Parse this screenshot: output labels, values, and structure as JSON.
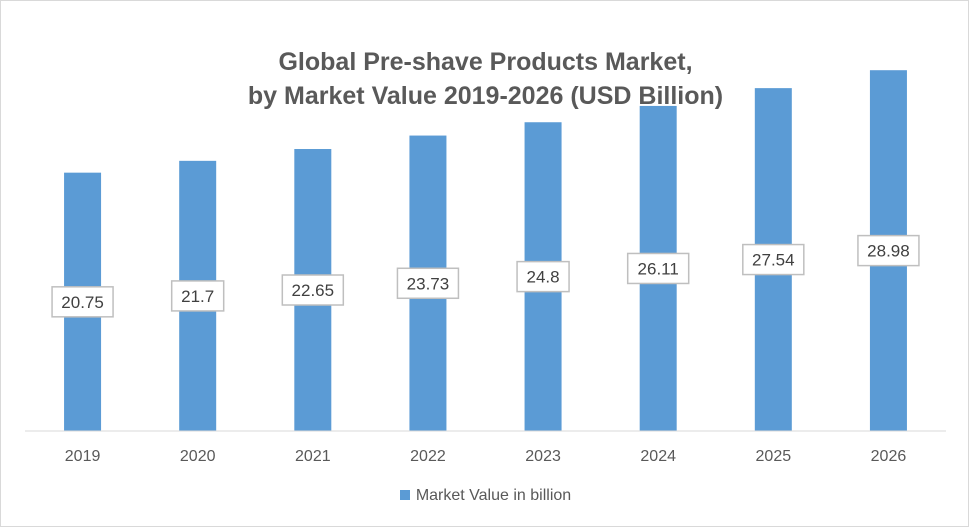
{
  "chart_data": {
    "type": "bar",
    "title_line1": "Global Pre-shave Products Market,",
    "title_line2": "by Market Value 2019-2026 (USD Billion)",
    "categories": [
      "2019",
      "2020",
      "2021",
      "2022",
      "2023",
      "2024",
      "2025",
      "2026"
    ],
    "series": [
      {
        "name": "Market Value in billion",
        "values": [
          20.75,
          21.7,
          22.65,
          23.73,
          24.8,
          26.11,
          27.54,
          28.98
        ],
        "labels": [
          "20.75",
          "21.7",
          "22.65",
          "23.73",
          "24.8",
          "26.11",
          "27.54",
          "28.98"
        ]
      }
    ],
    "xlabel": "",
    "ylabel": "",
    "ylim": [
      0,
      30
    ],
    "grid": false,
    "legend_position": "bottom",
    "bar_color": "#5b9bd5"
  }
}
